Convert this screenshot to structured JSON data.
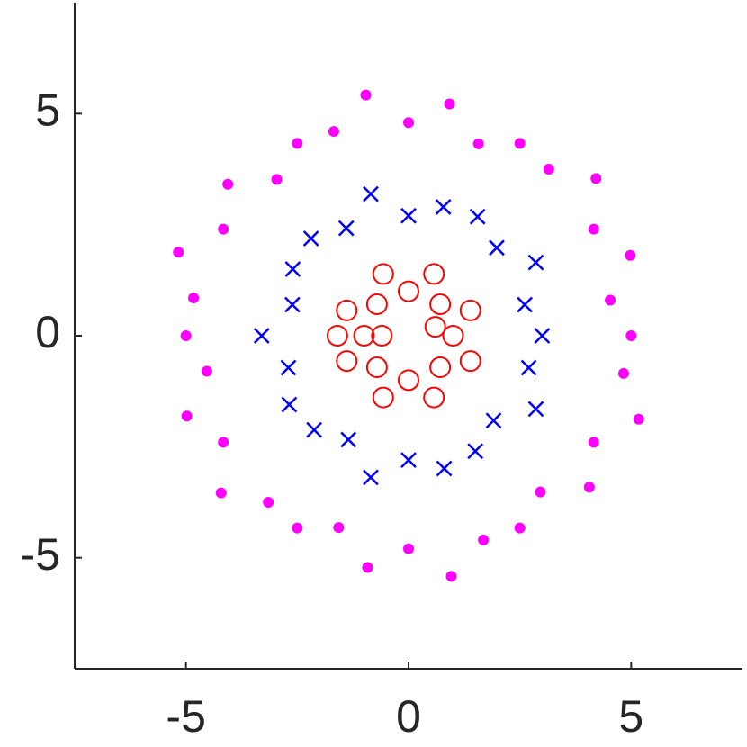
{
  "chart_data": {
    "type": "scatter",
    "xlim": [
      -7.5,
      7.5
    ],
    "ylim": [
      -7.5,
      7.5
    ],
    "xticks": [
      -5,
      0,
      5
    ],
    "yticks": [
      -5,
      0,
      5
    ],
    "grid": false,
    "series": [
      {
        "color": "#ff00ff",
        "marker": "filled-circle",
        "x": [
          5.0,
          4.53,
          4.98,
          4.16,
          4.21,
          3.15,
          2.5,
          1.57,
          0.92,
          0,
          -0.96,
          -1.68,
          -2.5,
          -2.96,
          -4.06,
          -4.16,
          -5.17,
          -4.83,
          -5,
          -4.53,
          -4.98,
          -4.16,
          -4.21,
          -3.15,
          -2.5,
          -1.57,
          -0.92,
          0,
          0.96,
          1.68,
          2.5,
          2.96,
          4.06,
          4.16,
          5.17,
          4.83
        ],
        "y": [
          0,
          0.8,
          1.81,
          2.4,
          3.54,
          3.75,
          4.33,
          4.32,
          5.22,
          4.8,
          5.42,
          4.6,
          4.33,
          3.52,
          3.41,
          2.4,
          1.88,
          0.85,
          0,
          -0.8,
          -1.81,
          -2.4,
          -3.54,
          -3.75,
          -4.33,
          -4.32,
          -5.22,
          -4.8,
          -5.42,
          -4.6,
          -4.33,
          -3.52,
          -3.41,
          -2.4,
          -1.88,
          -0.85
        ]
      },
      {
        "color": "#0000ff",
        "marker": "x",
        "x": [
          3.0,
          2.61,
          2.86,
          1.98,
          1.55,
          0.78,
          0,
          -0.85,
          -1.4,
          -2.19,
          -2.6,
          -2.61,
          -3.3,
          -2.7,
          -2.68,
          -2.12,
          -1.35,
          -0.85,
          0,
          0.8,
          1.5,
          1.91,
          2.86,
          2.7
        ],
        "y": [
          0,
          0.7,
          1.65,
          1.98,
          2.68,
          2.9,
          2.7,
          3.19,
          2.42,
          2.19,
          1.5,
          0.7,
          0,
          -0.72,
          -1.55,
          -2.12,
          -2.34,
          -3.19,
          -2.8,
          -2.99,
          -2.6,
          -1.91,
          -1.65,
          -0.72
        ]
      },
      {
        "color": "#ff0000",
        "marker": "open-circle",
        "x": [
          1,
          0.71,
          0,
          -0.71,
          -1,
          -0.71,
          0,
          0.71,
          1.39,
          0.57,
          -0.57,
          -1.39,
          -1.39,
          -0.57,
          0.57,
          1.39,
          -1.6,
          -0.6,
          0.6
        ],
        "y": [
          0,
          0.71,
          1,
          0.71,
          0,
          -0.71,
          -1,
          -0.71,
          0.57,
          1.39,
          1.39,
          0.57,
          -0.57,
          -1.39,
          -1.39,
          -0.57,
          0,
          0,
          0.2
        ]
      }
    ]
  }
}
